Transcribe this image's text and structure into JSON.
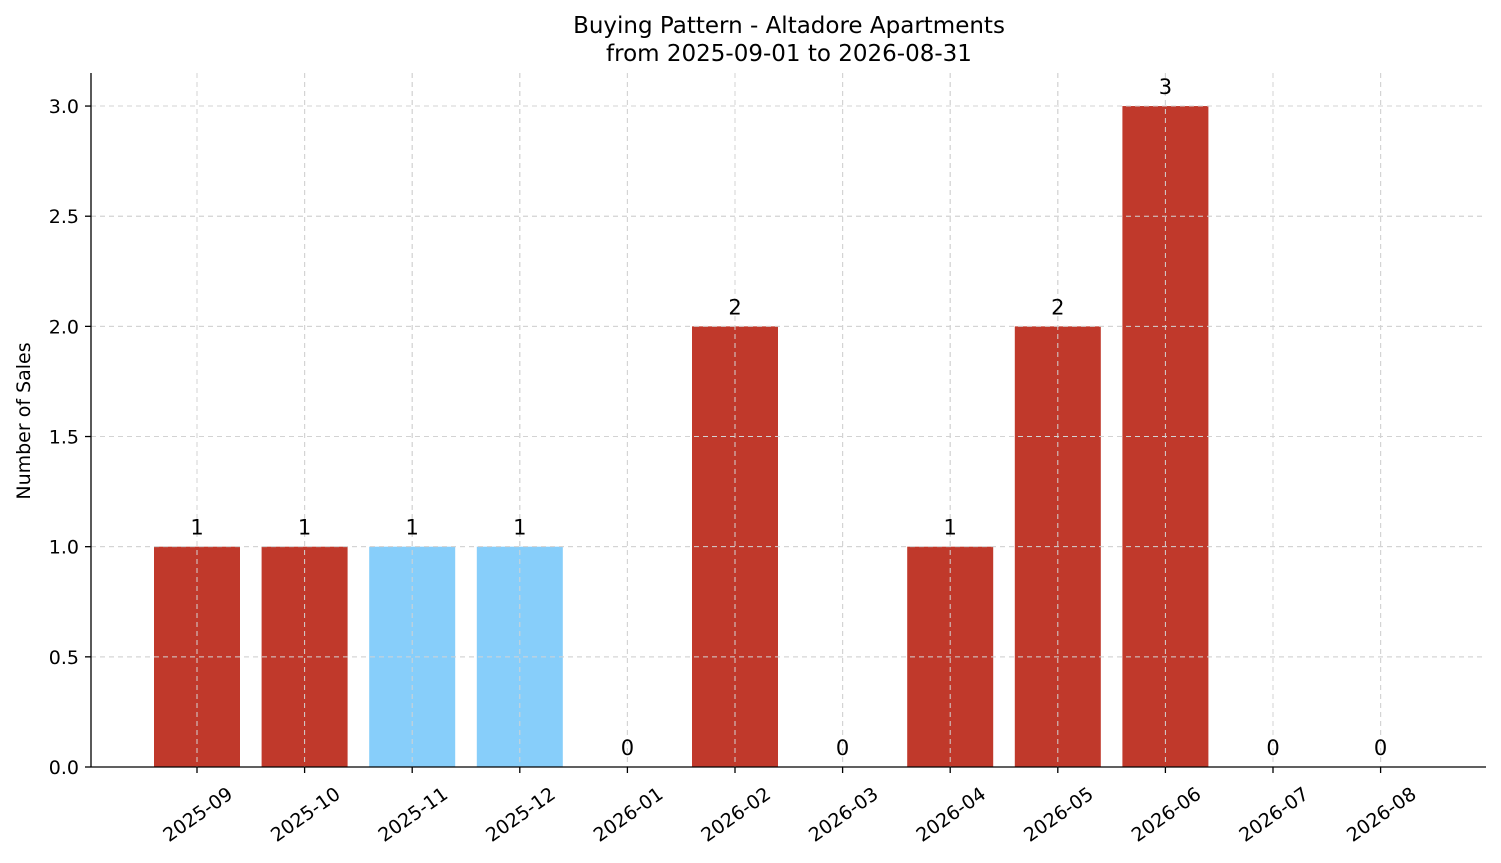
{
  "chart_data": {
    "type": "bar",
    "title": "Buying Pattern - Altadore Apartments",
    "subtitle": "from 2025-09-01 to 2026-08-31",
    "xlabel": "",
    "ylabel": "Number of Sales",
    "ylim": [
      0,
      3.15
    ],
    "yticks": [
      0.0,
      0.5,
      1.0,
      1.5,
      2.0,
      2.5,
      3.0
    ],
    "ytick_labels": [
      "0.0",
      "0.5",
      "1.0",
      "1.5",
      "2.0",
      "2.5",
      "3.0"
    ],
    "grid": true,
    "categories": [
      "2025-09",
      "2025-10",
      "2025-11",
      "2025-12",
      "2026-01",
      "2026-02",
      "2026-03",
      "2026-04",
      "2026-05",
      "2026-06",
      "2026-07",
      "2026-08"
    ],
    "values": [
      1,
      1,
      1,
      1,
      0,
      2,
      0,
      1,
      2,
      3,
      0,
      0
    ],
    "value_labels": [
      "1",
      "1",
      "1",
      "1",
      "0",
      "2",
      "0",
      "1",
      "2",
      "3",
      "0",
      "0"
    ],
    "bar_colors": [
      "#c0392b",
      "#c0392b",
      "#87cefa",
      "#87cefa",
      "#c0392b",
      "#c0392b",
      "#c0392b",
      "#c0392b",
      "#c0392b",
      "#c0392b",
      "#c0392b",
      "#c0392b"
    ]
  }
}
